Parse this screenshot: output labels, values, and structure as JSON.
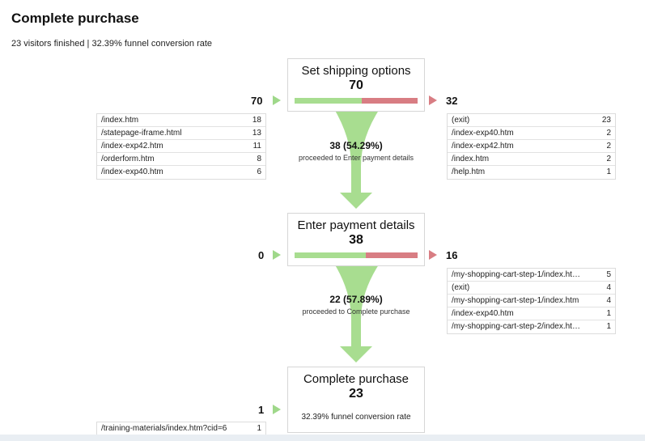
{
  "title": "Complete purchase",
  "summary": "23 visitors finished | 32.39% funnel conversion rate",
  "colors": {
    "green": "#9fd88a",
    "red": "#d87d83"
  },
  "steps": [
    {
      "name": "Set shipping options",
      "count": "70",
      "entrances": "70",
      "exits": "32",
      "continue_fraction": 0.5429,
      "entry_pages": [
        {
          "page": "/index.htm",
          "count": "18"
        },
        {
          "page": "/statepage-iframe.html",
          "count": "13"
        },
        {
          "page": "/index-exp42.htm",
          "count": "11"
        },
        {
          "page": "/orderform.htm",
          "count": "8"
        },
        {
          "page": "/index-exp40.htm",
          "count": "6"
        }
      ],
      "exit_pages": [
        {
          "page": "(exit)",
          "count": "23"
        },
        {
          "page": "/index-exp40.htm",
          "count": "2"
        },
        {
          "page": "/index-exp42.htm",
          "count": "2"
        },
        {
          "page": "/index.htm",
          "count": "2"
        },
        {
          "page": "/help.htm",
          "count": "1"
        }
      ],
      "proceeded_count": "38 (54.29%)",
      "proceeded_label": "proceeded to Enter payment details"
    },
    {
      "name": "Enter payment details",
      "count": "38",
      "entrances": "0",
      "exits": "16",
      "continue_fraction": 0.5789,
      "exit_pages": [
        {
          "page": "/my-shopping-cart-step-1/index.ht…",
          "count": "5"
        },
        {
          "page": "(exit)",
          "count": "4"
        },
        {
          "page": "/my-shopping-cart-step-1/index.htm",
          "count": "4"
        },
        {
          "page": "/index-exp40.htm",
          "count": "1"
        },
        {
          "page": "/my-shopping-cart-step-2/index.ht…",
          "count": "1"
        }
      ],
      "proceeded_count": "22 (57.89%)",
      "proceeded_label": "proceeded to Complete purchase"
    },
    {
      "name": "Complete purchase",
      "count": "23",
      "entrances": "1",
      "note": "32.39% funnel conversion rate",
      "entry_pages": [
        {
          "page": "/training-materials/index.htm?cid=6",
          "count": "1"
        }
      ]
    }
  ]
}
